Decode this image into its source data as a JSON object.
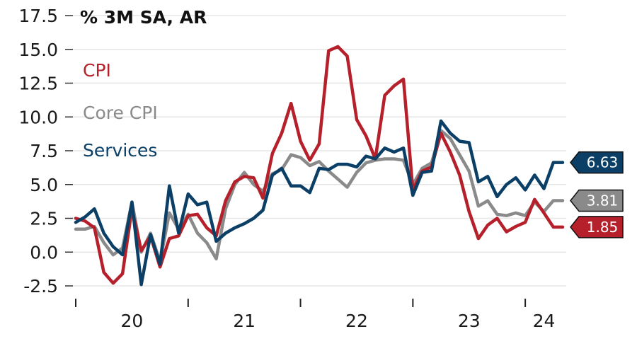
{
  "chart_data": {
    "type": "line",
    "ylabel": "% 3M SA, AR",
    "ylim": [
      -2.5,
      17.5
    ],
    "yticks": [
      -2.5,
      0.0,
      2.5,
      5.0,
      7.5,
      10.0,
      12.5,
      15.0,
      17.5
    ],
    "ytick_labels": [
      "-2.5",
      "0.0",
      "2.5",
      "5.0",
      "7.5",
      "10.0",
      "12.5",
      "15.0",
      "17.5"
    ],
    "xlim": [
      2019.917,
      2024.25
    ],
    "xticks": [
      2020,
      2021,
      2022,
      2023,
      2024
    ],
    "xtick_labels": [
      "20",
      "21",
      "22",
      "23",
      "24"
    ],
    "grid": "horizontal",
    "legend_placement": "top-left",
    "series": [
      {
        "name": "CPI",
        "color": "#b5202b",
        "end_label": "1.85",
        "x": [
          2019.917,
          2020.0,
          2020.083,
          2020.167,
          2020.25,
          2020.333,
          2020.417,
          2020.5,
          2020.583,
          2020.667,
          2020.75,
          2020.833,
          2020.917,
          2021.0,
          2021.083,
          2021.167,
          2021.25,
          2021.333,
          2021.417,
          2021.5,
          2021.583,
          2021.667,
          2021.75,
          2021.833,
          2021.917,
          2022.0,
          2022.083,
          2022.167,
          2022.25,
          2022.333,
          2022.417,
          2022.5,
          2022.583,
          2022.667,
          2022.75,
          2022.833,
          2022.917,
          2023.0,
          2023.083,
          2023.167,
          2023.25,
          2023.333,
          2023.417,
          2023.5,
          2023.583,
          2023.667,
          2023.75,
          2023.833,
          2023.917,
          2024.0,
          2024.083,
          2024.167,
          2024.25
        ],
        "values": [
          2.5,
          2.3,
          1.8,
          -1.5,
          -2.3,
          -1.6,
          3.2,
          0.1,
          1.2,
          -1.1,
          1.0,
          1.2,
          2.7,
          2.8,
          1.8,
          1.2,
          3.8,
          5.2,
          5.6,
          5.5,
          4.0,
          7.3,
          8.8,
          11.0,
          8.2,
          6.8,
          8.0,
          14.9,
          15.2,
          14.5,
          9.8,
          8.6,
          6.9,
          11.6,
          12.3,
          12.8,
          4.6,
          6.0,
          6.3,
          8.8,
          7.4,
          5.7,
          3.0,
          1.0,
          2.0,
          2.5,
          1.5,
          1.9,
          2.2,
          3.9,
          2.9,
          1.85,
          1.85
        ]
      },
      {
        "name": "Core CPI",
        "color": "#8a8a8a",
        "end_label": "3.81",
        "x": [
          2019.917,
          2020.0,
          2020.083,
          2020.167,
          2020.25,
          2020.333,
          2020.417,
          2020.5,
          2020.583,
          2020.667,
          2020.75,
          2020.833,
          2020.917,
          2021.0,
          2021.083,
          2021.167,
          2021.25,
          2021.333,
          2021.417,
          2021.5,
          2021.583,
          2021.667,
          2021.75,
          2021.833,
          2021.917,
          2022.0,
          2022.083,
          2022.167,
          2022.25,
          2022.333,
          2022.417,
          2022.5,
          2022.583,
          2022.667,
          2022.75,
          2022.833,
          2022.917,
          2023.0,
          2023.083,
          2023.167,
          2023.25,
          2023.333,
          2023.417,
          2023.5,
          2023.583,
          2023.667,
          2023.75,
          2023.833,
          2023.917,
          2024.0,
          2024.083,
          2024.167,
          2024.25
        ],
        "values": [
          1.7,
          1.7,
          1.9,
          0.7,
          -0.2,
          0.3,
          3.7,
          0.0,
          1.4,
          -0.7,
          2.9,
          1.7,
          2.8,
          1.4,
          0.7,
          -0.5,
          3.2,
          5.0,
          5.9,
          5.0,
          4.5,
          5.8,
          6.1,
          7.2,
          7.0,
          6.4,
          6.7,
          6.0,
          5.4,
          4.8,
          5.9,
          6.6,
          6.8,
          6.9,
          6.9,
          6.8,
          5.0,
          6.2,
          6.6,
          9.0,
          8.4,
          7.2,
          6.0,
          3.4,
          3.8,
          2.8,
          2.7,
          2.9,
          2.7,
          3.7,
          3.0,
          3.81,
          3.81
        ]
      },
      {
        "name": "Services",
        "color": "#0b3f66",
        "end_label": "6.63",
        "x": [
          2019.917,
          2020.0,
          2020.083,
          2020.167,
          2020.25,
          2020.333,
          2020.417,
          2020.5,
          2020.583,
          2020.667,
          2020.75,
          2020.833,
          2020.917,
          2021.0,
          2021.083,
          2021.167,
          2021.25,
          2021.333,
          2021.417,
          2021.5,
          2021.583,
          2021.667,
          2021.75,
          2021.833,
          2021.917,
          2022.0,
          2022.083,
          2022.167,
          2022.25,
          2022.333,
          2022.417,
          2022.5,
          2022.583,
          2022.667,
          2022.75,
          2022.833,
          2022.917,
          2023.0,
          2023.083,
          2023.167,
          2023.25,
          2023.333,
          2023.417,
          2023.5,
          2023.583,
          2023.667,
          2023.75,
          2023.833,
          2023.917,
          2024.0,
          2024.083,
          2024.167,
          2024.25
        ],
        "values": [
          2.2,
          2.6,
          3.2,
          1.4,
          0.4,
          -0.2,
          3.7,
          -2.4,
          1.3,
          -0.9,
          4.9,
          1.4,
          4.3,
          3.5,
          3.7,
          0.8,
          1.4,
          1.8,
          2.1,
          2.5,
          3.1,
          5.7,
          6.2,
          4.9,
          4.9,
          4.4,
          6.2,
          6.1,
          6.5,
          6.5,
          6.3,
          7.1,
          6.9,
          7.7,
          7.4,
          7.7,
          4.2,
          5.9,
          6.0,
          9.7,
          8.8,
          8.2,
          8.1,
          5.2,
          5.6,
          4.1,
          5.0,
          5.5,
          4.6,
          5.7,
          4.7,
          6.63,
          6.63
        ]
      }
    ]
  }
}
